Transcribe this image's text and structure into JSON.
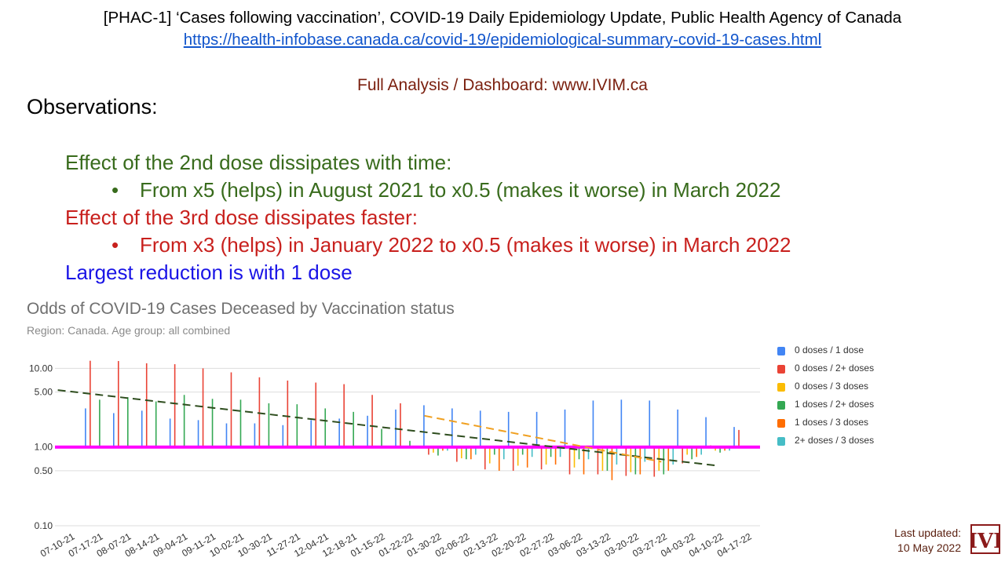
{
  "header": {
    "title": "[PHAC-1] ‘Cases following vaccination’, COVID-19 Daily Epidemiology Update, Public Health Agency of Canada",
    "url": "https://health-infobase.canada.ca/covid-19/epidemiological-summary-covid-19-cases.html",
    "dashboard": "Full Analysis / Dashboard: www.IVIM.ca"
  },
  "observations": {
    "heading": "Observations:",
    "dose2_heading": "Effect of the 2nd dose dissipates with time:",
    "dose2_bullet": "From x5 (helps) in August 2021  to  x0.5 (makes it worse) in March 2022",
    "dose3_heading": "Effect of the 3rd dose dissipates faster:",
    "dose3_bullet": "From x3 (helps) in January 2022 to x0.5 (makes it worse) in March 2022",
    "dose1_note": "Largest reduction is with 1 dose",
    "bullet_char": "•",
    "colors": {
      "green": "#386b1c",
      "red": "#c8201d",
      "blue": "#1a14e6"
    }
  },
  "footer": {
    "updated_label": "Last updated:",
    "updated_date": "10 May 2022",
    "logo_text": "IVI"
  },
  "chart_data": {
    "type": "bar",
    "title": "Odds of COVID-19 Cases Deceased by Vaccination status",
    "subtitle": "Region: Canada. Age group: all combined",
    "y_scale": "log",
    "ylim": [
      0.1,
      13
    ],
    "y_ticks": [
      {
        "v": 10,
        "label": "10.00"
      },
      {
        "v": 5,
        "label": "5.00"
      },
      {
        "v": 1,
        "label": "1.00"
      },
      {
        "v": 0.5,
        "label": "0.50"
      },
      {
        "v": 0.1,
        "label": "0.10"
      }
    ],
    "grid": true,
    "legend_position": "right",
    "categories": [
      "07-10-21",
      "07-17-21",
      "08-07-21",
      "08-14-21",
      "09-04-21",
      "09-11-21",
      "10-02-21",
      "10-30-21",
      "11-27-21",
      "12-04-21",
      "12-18-21",
      "01-15-22",
      "01-22-22",
      "01-30-22",
      "02-06-22",
      "02-13-22",
      "02-20-22",
      "02-27-22",
      "03-06-22",
      "03-13-22",
      "03-20-22",
      "03-27-22",
      "04-03-22",
      "04-10-22",
      "04-17-22"
    ],
    "series": [
      {
        "name": "0 doses / 1  dose",
        "color": "#4285f4",
        "values": [
          null,
          3.1,
          2.7,
          2.9,
          2.3,
          2.2,
          2.0,
          2.0,
          1.9,
          2.2,
          2.3,
          2.5,
          3.0,
          3.4,
          3.1,
          2.9,
          2.8,
          2.8,
          3.0,
          3.9,
          4.0,
          3.9,
          3.0,
          2.4,
          1.8
        ]
      },
      {
        "name": "0 doses / 2+  doses",
        "color": "#ea4335",
        "values": [
          null,
          12.5,
          12.4,
          11.6,
          11.3,
          10.0,
          8.9,
          7.7,
          7.0,
          6.6,
          6.3,
          4.6,
          3.6,
          0.8,
          0.65,
          0.52,
          0.5,
          0.52,
          0.45,
          0.45,
          0.43,
          0.42,
          0.62,
          1.05,
          1.65
        ]
      },
      {
        "name": "0 doses / 3  doses",
        "color": "#fbbc04",
        "values": [
          null,
          null,
          null,
          null,
          null,
          null,
          null,
          null,
          null,
          null,
          null,
          null,
          null,
          0.85,
          0.72,
          0.62,
          0.58,
          0.6,
          0.55,
          0.5,
          0.48,
          0.5,
          0.8,
          0.9,
          1.0
        ]
      },
      {
        "name": "1 doses / 2+ doses",
        "color": "#34a853",
        "values": [
          null,
          4.0,
          4.3,
          3.8,
          4.6,
          4.1,
          4.0,
          3.6,
          3.5,
          3.1,
          2.8,
          1.7,
          1.2,
          0.78,
          0.7,
          0.8,
          0.8,
          0.75,
          0.7,
          0.5,
          0.45,
          0.45,
          0.7,
          0.85,
          1.0
        ]
      },
      {
        "name": "1 doses / 3  doses",
        "color": "#ff6d01",
        "values": [
          null,
          null,
          null,
          null,
          null,
          null,
          null,
          null,
          null,
          null,
          null,
          null,
          null,
          0.9,
          0.7,
          0.5,
          0.55,
          0.6,
          0.45,
          0.38,
          0.45,
          0.5,
          0.75,
          0.9,
          1.0
        ]
      },
      {
        "name": "2+ doses / 3  doses",
        "color": "#46bdc6",
        "values": [
          null,
          null,
          null,
          null,
          null,
          null,
          null,
          null,
          null,
          null,
          null,
          null,
          null,
          0.9,
          0.8,
          0.7,
          0.75,
          0.75,
          0.7,
          0.6,
          0.65,
          0.6,
          0.8,
          0.9,
          1.0
        ]
      }
    ],
    "reference_line": {
      "value": 1,
      "color": "#ff00ff"
    },
    "trendlines": [
      {
        "name": "2nd dose trend",
        "color": "#2e4d1e",
        "from": {
          "x": "07-10-21",
          "y": 5.3
        },
        "to": {
          "x": "04-10-22",
          "y": 0.58
        }
      },
      {
        "name": "3rd dose trend",
        "color": "#f0a020",
        "from": {
          "x": "01-30-22",
          "y": 2.5
        },
        "to": {
          "x": "03-27-22",
          "y": 0.65
        }
      }
    ]
  }
}
